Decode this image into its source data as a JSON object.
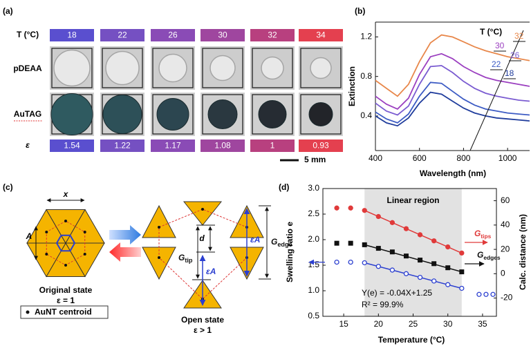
{
  "panel_a": {
    "label": "(a)",
    "row_labels": {
      "temperature": "T (°C)",
      "pdeaa": "pDEAA",
      "autag": "AuTAG",
      "epsilon": "ε"
    },
    "temperatures": [
      18,
      22,
      26,
      30,
      32,
      34
    ],
    "epsilon_values": [
      1.54,
      1.22,
      1.17,
      1.08,
      1,
      0.93
    ],
    "colors": [
      "#5a4fcf",
      "#7550c2",
      "#8a4bb6",
      "#9f469f",
      "#b8407f",
      "#e4404f"
    ],
    "scale_bar": "5 mm"
  },
  "panel_c": {
    "label": "(c)",
    "original": {
      "width_label": "x",
      "height_label": "A",
      "title": "Original state",
      "condition": "ε = 1"
    },
    "legend": "AuNT centroid",
    "open": {
      "gap_label": "d",
      "tip_gap": {
        "main": "G",
        "sub": "tip"
      },
      "edge_gap": {
        "main": "G",
        "sub": "edge"
      },
      "scaled_height": "εA",
      "title": "Open state",
      "condition": "ε > 1"
    }
  },
  "chart_data": [
    {
      "type": "line",
      "label": "(b)",
      "xlabel": "Wavelength (nm)",
      "ylabel": "Extinction",
      "legend_title": "T (°C)",
      "x": [
        400,
        450,
        500,
        550,
        600,
        650,
        700,
        750,
        800,
        850,
        900,
        950,
        1000,
        1050,
        1100
      ],
      "xlim": [
        400,
        1100
      ],
      "xticks": [
        400,
        600,
        800,
        1000
      ],
      "ylim": [
        0.05,
        1.35
      ],
      "yticks": [
        0.4,
        0.8,
        1.2
      ],
      "series": [
        {
          "name": "32",
          "color": "#e8874a",
          "values": [
            0.76,
            0.68,
            0.6,
            0.72,
            0.95,
            1.14,
            1.22,
            1.2,
            1.15,
            1.1,
            1.06,
            1.03,
            1.0,
            0.98,
            0.96
          ]
        },
        {
          "name": "30",
          "color": "#9b3fc0",
          "values": [
            0.6,
            0.52,
            0.47,
            0.58,
            0.82,
            1.0,
            1.03,
            0.98,
            0.9,
            0.84,
            0.79,
            0.76,
            0.74,
            0.72,
            0.7
          ]
        },
        {
          "name": "26",
          "color": "#7a5bd1",
          "values": [
            0.53,
            0.45,
            0.41,
            0.5,
            0.72,
            0.9,
            0.91,
            0.84,
            0.75,
            0.68,
            0.63,
            0.6,
            0.58,
            0.56,
            0.55
          ]
        },
        {
          "name": "22",
          "color": "#3c5bc4",
          "values": [
            0.44,
            0.37,
            0.33,
            0.42,
            0.6,
            0.74,
            0.73,
            0.65,
            0.57,
            0.51,
            0.47,
            0.45,
            0.43,
            0.42,
            0.41
          ]
        },
        {
          "name": "18",
          "color": "#1f3c9c",
          "values": [
            0.4,
            0.33,
            0.3,
            0.38,
            0.53,
            0.64,
            0.62,
            0.55,
            0.48,
            0.43,
            0.4,
            0.38,
            0.37,
            0.36,
            0.35
          ]
        }
      ]
    },
    {
      "type": "scatter",
      "label": "(d)",
      "xlabel": "Temperature (°C)",
      "ylabel": "Swelling ratio e",
      "y2label": "Calc. distance (nm)",
      "xlim": [
        12,
        37
      ],
      "xticks": [
        15,
        20,
        25,
        30,
        35
      ],
      "ylim": [
        0.5,
        3
      ],
      "yticks": [
        0.5,
        {
          "value": 1,
          "label": "1.0"
        },
        1.5,
        {
          "value": 2,
          "label": "2.0"
        },
        2.5,
        {
          "value": 3,
          "label": "3.0"
        }
      ],
      "y2lim": [
        -35,
        70
      ],
      "y2ticks": [
        -20,
        0,
        20,
        40,
        60
      ],
      "region": {
        "label": "Linear region",
        "x": [
          18,
          32
        ]
      },
      "annotations": [
        "Y(e) = -0.04X+1.25",
        "R² = 99.9%"
      ],
      "series": [
        {
          "color": "#111111",
          "marker": "square",
          "filled": true,
          "x": [
            14,
            16,
            18,
            20,
            22,
            24,
            26,
            28,
            30,
            32
          ],
          "values": [
            1.93,
            1.93,
            1.9,
            1.83,
            1.76,
            1.68,
            1.6,
            1.53,
            1.45,
            1.37
          ]
        },
        {
          "name": "G",
          "name_sub": "tips",
          "axis": "y2",
          "color": "#e03a3a",
          "marker": "circle",
          "filled": true,
          "x": [
            14,
            16,
            18,
            20,
            22,
            24,
            26,
            28,
            30,
            32
          ],
          "values": [
            54,
            54,
            52,
            47,
            42,
            37,
            32,
            27,
            22,
            17
          ]
        },
        {
          "name": "G",
          "name_sub": "edges",
          "axis": "y2",
          "color": "#2b3fd0",
          "marker": "circle",
          "filled": false,
          "x": [
            14,
            16,
            18,
            20,
            22,
            24,
            26,
            28,
            30,
            32,
            34.5,
            35.5,
            36.5
          ],
          "values": [
            9.5,
            9.5,
            9,
            6,
            3,
            0,
            -3,
            -6,
            -9,
            -12,
            -17,
            -17,
            -17
          ]
        }
      ]
    }
  ]
}
